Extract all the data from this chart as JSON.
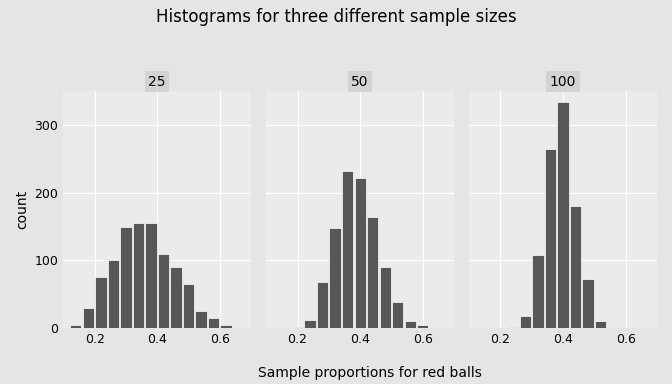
{
  "title": "Histograms for three different sample sizes",
  "xlabel": "Sample proportions for red balls",
  "ylabel": "count",
  "panel_labels": [
    "25",
    "50",
    "100"
  ],
  "ylim": [
    0,
    350
  ],
  "yticks": [
    0,
    100,
    200,
    300
  ],
  "xlim": [
    0.1,
    0.7
  ],
  "xticks": [
    0.2,
    0.4,
    0.6
  ],
  "bar_color": "#575757",
  "edge_color": "white",
  "panel_bg": "#EBEBEB",
  "fig_bg": "#E5E5E5",
  "grid_color": "white",
  "panel_label_bg": "#D3D3D3",
  "histograms": {
    "25": {
      "bin_centers": [
        0.14,
        0.18,
        0.22,
        0.26,
        0.3,
        0.34,
        0.38,
        0.42,
        0.46,
        0.5,
        0.54,
        0.58,
        0.62
      ],
      "counts": [
        5,
        30,
        75,
        100,
        150,
        155,
        155,
        110,
        90,
        65,
        25,
        15,
        5
      ],
      "bin_width": 0.04
    },
    "50": {
      "bin_centers": [
        0.2,
        0.24,
        0.28,
        0.32,
        0.36,
        0.4,
        0.44,
        0.48,
        0.52,
        0.56,
        0.6
      ],
      "counts": [
        2,
        12,
        68,
        148,
        232,
        222,
        165,
        90,
        38,
        10,
        5
      ],
      "bin_width": 0.04
    },
    "100": {
      "bin_centers": [
        0.24,
        0.28,
        0.32,
        0.36,
        0.4,
        0.44,
        0.48,
        0.52
      ],
      "counts": [
        2,
        18,
        108,
        265,
        335,
        180,
        72,
        10
      ],
      "bin_width": 0.04
    }
  }
}
